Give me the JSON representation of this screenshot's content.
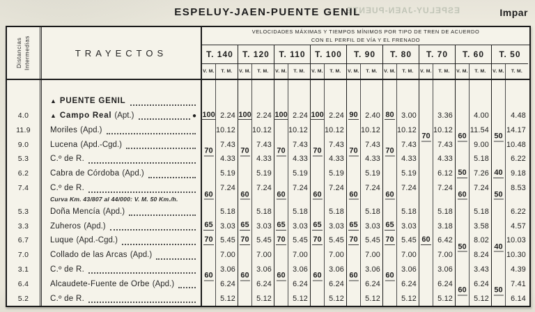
{
  "page": {
    "title": "ESPELUY-JAEN-PUENTE GENIL",
    "side_label": "Impar",
    "bleed_text": "ESPELUY-JAEN-PUENTE"
  },
  "table": {
    "distance_header": "Distancias Intermedias",
    "trayectos_header": "TRAYECTOS",
    "banner_line1": "VELOCIDADES MÁXIMAS Y TIEMPOS MÍNIMOS POR TIPO DE TREN DE ACUERDO",
    "banner_line2": "CON EL PERFIL DE VÍA Y EL FRENADO",
    "train_types": [
      "T. 140",
      "T. 120",
      "T. 110",
      "T. 100",
      "T. 90",
      "T. 80",
      "T. 70",
      "T. 60",
      "T. 50"
    ],
    "sub_vm": "V. M.",
    "sub_tm": "T. M.",
    "rows": [
      {
        "distance": "",
        "prefix": "▲",
        "name": "PUENTE GENIL",
        "bold": true,
        "suffix": "",
        "marker": "",
        "vm": [
          "",
          "",
          "",
          "",
          "",
          "",
          "",
          "",
          ""
        ],
        "drop": [
          0,
          0,
          0,
          0,
          0,
          0,
          0,
          0,
          0
        ],
        "tm": [
          "",
          "",
          "",
          "",
          "",
          "",
          "",
          "",
          ""
        ]
      },
      {
        "distance": "4.0",
        "prefix": "▲",
        "name": "Campo Real",
        "bold": true,
        "suffix": "(Apt.)",
        "marker": "●",
        "vm": [
          "100",
          "100",
          "100",
          "100",
          "90",
          "80",
          "",
          "",
          ""
        ],
        "drop": [
          0,
          0,
          0,
          0,
          0,
          0,
          0,
          0,
          0
        ],
        "tm": [
          "2.24",
          "2.24",
          "2.24",
          "2.24",
          "2.40",
          "3.00",
          "3.36",
          "4.00",
          "4.48"
        ]
      },
      {
        "distance": "11.9",
        "prefix": "",
        "name": "Moriles",
        "bold": false,
        "suffix": "(Apd.)",
        "marker": "",
        "vm": [
          "",
          "",
          "",
          "",
          "",
          "",
          "70",
          "60",
          "50"
        ],
        "drop": [
          0,
          0,
          0,
          0,
          0,
          0,
          1,
          1,
          1
        ],
        "tm": [
          "10.12",
          "10.12",
          "10.12",
          "10.12",
          "10.12",
          "10.12",
          "10.12",
          "11.54",
          "14.17"
        ]
      },
      {
        "distance": "9.0",
        "prefix": "",
        "name": "Lucena",
        "bold": false,
        "suffix": "(Apd.-Cgd.)",
        "marker": "",
        "vm": [
          "70",
          "70",
          "70",
          "70",
          "70",
          "70",
          "",
          "",
          ""
        ],
        "drop": [
          1,
          1,
          1,
          1,
          1,
          1,
          0,
          0,
          0
        ],
        "tm": [
          "7.43",
          "7.43",
          "7.43",
          "7.43",
          "7.43",
          "7.43",
          "7.43",
          "9.00",
          "10.48"
        ]
      },
      {
        "distance": "5.3",
        "prefix": "",
        "name": "C.º de R.",
        "bold": false,
        "suffix": "",
        "marker": "",
        "vm": [
          "",
          "",
          "",
          "",
          "",
          "",
          "",
          "",
          ""
        ],
        "drop": [
          0,
          0,
          0,
          0,
          0,
          0,
          0,
          0,
          0
        ],
        "tm": [
          "4.33",
          "4.33",
          "4.33",
          "4.33",
          "4.33",
          "4.33",
          "4.33",
          "5.18",
          "6.22"
        ]
      },
      {
        "distance": "6.2",
        "prefix": "",
        "name": "Cabra de Córdoba",
        "bold": false,
        "suffix": "(Apd.)",
        "marker": "",
        "vm": [
          "",
          "",
          "",
          "",
          "",
          "",
          "",
          "50",
          "40"
        ],
        "drop": [
          0,
          0,
          0,
          0,
          0,
          0,
          0,
          0,
          0
        ],
        "tm": [
          "5.19",
          "5.19",
          "5.19",
          "5.19",
          "5.19",
          "5.19",
          "6.12",
          "7.26",
          "9.18"
        ]
      },
      {
        "distance": "7.4",
        "prefix": "",
        "name": "C.º de R.",
        "bold": false,
        "suffix": "",
        "marker": "",
        "note": "Curva Km. 43/807 al 44/000: V. M. 50 Km./h.",
        "vm": [
          "60",
          "60",
          "60",
          "60",
          "60",
          "60",
          "",
          "60",
          "50"
        ],
        "drop": [
          1,
          1,
          1,
          1,
          1,
          1,
          0,
          1,
          1
        ],
        "tm": [
          "7.24",
          "7.24",
          "7.24",
          "7.24",
          "7.24",
          "7.24",
          "7.24",
          "7.24",
          "8.53"
        ]
      },
      {
        "distance": "5.3",
        "prefix": "",
        "name": "Doña Mencía",
        "bold": false,
        "suffix": "(Apd.)",
        "marker": "",
        "vm": [
          "",
          "",
          "",
          "",
          "",
          "",
          "",
          "",
          ""
        ],
        "drop": [
          0,
          0,
          0,
          0,
          0,
          0,
          0,
          0,
          0
        ],
        "tm": [
          "5.18",
          "5.18",
          "5.18",
          "5.18",
          "5.18",
          "5.18",
          "5.18",
          "5.18",
          "6.22"
        ]
      },
      {
        "distance": "3.3",
        "prefix": "",
        "name": "Zuheros",
        "bold": false,
        "suffix": "(Apd.)",
        "marker": "",
        "vm": [
          "65",
          "65",
          "65",
          "65",
          "65",
          "65",
          "",
          "",
          ""
        ],
        "drop": [
          0,
          0,
          0,
          0,
          0,
          0,
          0,
          0,
          0
        ],
        "tm": [
          "3.03",
          "3.03",
          "3.03",
          "3.03",
          "3.03",
          "3.03",
          "3.18",
          "3.58",
          "4.57"
        ]
      },
      {
        "distance": "6.7",
        "prefix": "",
        "name": "Luque",
        "bold": false,
        "suffix": "(Apd.-Cgd.)",
        "marker": "",
        "vm": [
          "70",
          "70",
          "70",
          "70",
          "70",
          "70",
          "60",
          "50",
          "40"
        ],
        "drop": [
          0,
          0,
          0,
          0,
          0,
          0,
          0,
          1,
          1
        ],
        "tm": [
          "5.45",
          "5.45",
          "5.45",
          "5.45",
          "5.45",
          "5.45",
          "6.42",
          "8.02",
          "10.03"
        ]
      },
      {
        "distance": "7.0",
        "prefix": "",
        "name": "Collado de las Arcas",
        "bold": false,
        "suffix": "(Apd.)",
        "marker": "",
        "vm": [
          "",
          "",
          "",
          "",
          "",
          "",
          "",
          "",
          ""
        ],
        "drop": [
          0,
          0,
          0,
          0,
          0,
          0,
          0,
          0,
          0
        ],
        "tm": [
          "7.00",
          "7.00",
          "7.00",
          "7.00",
          "7.00",
          "7.00",
          "7.00",
          "8.24",
          "10.30"
        ]
      },
      {
        "distance": "3.1",
        "prefix": "",
        "name": "C.º de R.",
        "bold": false,
        "suffix": "",
        "marker": "",
        "vm": [
          "60",
          "60",
          "60",
          "60",
          "60",
          "60",
          "",
          "",
          ""
        ],
        "drop": [
          1,
          1,
          1,
          1,
          1,
          1,
          0,
          0,
          0
        ],
        "tm": [
          "3.06",
          "3.06",
          "3.06",
          "3.06",
          "3.06",
          "3.06",
          "3.06",
          "3.43",
          "4.39"
        ]
      },
      {
        "distance": "6.4",
        "prefix": "",
        "name": "Alcaudete-Fuente de Orbe",
        "bold": false,
        "suffix": "(Apd.)",
        "marker": "",
        "vm": [
          "",
          "",
          "",
          "",
          "",
          "",
          "",
          "60",
          "50"
        ],
        "drop": [
          0,
          0,
          0,
          0,
          0,
          0,
          0,
          1,
          1
        ],
        "tm": [
          "6.24",
          "6.24",
          "6.24",
          "6.24",
          "6.24",
          "6.24",
          "6.24",
          "6.24",
          "7.41"
        ]
      },
      {
        "distance": "5.2",
        "prefix": "",
        "name": "C.º de R.",
        "bold": false,
        "suffix": "",
        "marker": "",
        "vm": [
          "",
          "",
          "",
          "",
          "",
          "",
          "",
          "",
          ""
        ],
        "drop": [
          0,
          0,
          0,
          0,
          0,
          0,
          0,
          0,
          0
        ],
        "tm": [
          "5.12",
          "5.12",
          "5.12",
          "5.12",
          "5.12",
          "5.12",
          "5.12",
          "5.12",
          "6.14"
        ]
      }
    ]
  }
}
